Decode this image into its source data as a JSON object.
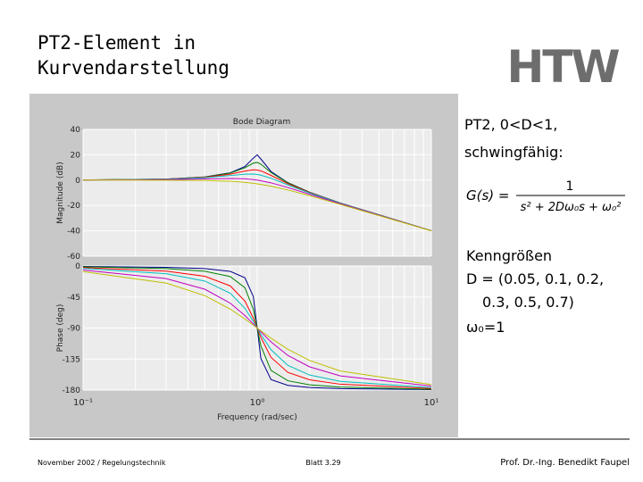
{
  "header": {
    "title_lines": [
      "PT2-Element in",
      "Kurvendarstellung"
    ],
    "logo": "HTW"
  },
  "side_text": {
    "heading_lines": [
      "PT2, 0<D<1,",
      "schwingfähig:"
    ],
    "formula": {
      "lhs": "G(s) =",
      "numerator": "1",
      "denominator": "s² + 2Dω₀s + ω₀²"
    },
    "params_lines": [
      "Kenngrößen",
      "D = (0.05, 0.1, 0.2,",
      "0.3, 0.5, 0.7)",
      "ω₀=1"
    ]
  },
  "footer": {
    "left": "November 2002 / Regelungstechnik",
    "center": "Blatt 3.29",
    "right": "Prof. Dr.-Ing. Benedikt Faupel"
  },
  "chart_data": [
    {
      "type": "line",
      "title": "Bode Diagram",
      "ylabel": "Magnitude (dB)",
      "xscale": "log",
      "grid": true,
      "x": [
        0.1,
        0.3,
        0.5,
        0.7,
        0.85,
        0.95,
        1,
        1.05,
        1.2,
        1.5,
        2,
        3,
        10
      ],
      "xlim": [
        0.1,
        10
      ],
      "ylim": [
        -60,
        40
      ],
      "yticks": [
        40,
        20,
        0,
        -20,
        -40,
        -60
      ],
      "series": [
        {
          "color": "#00008b",
          "values": [
            0.09,
            0.81,
            2.48,
            5.77,
            10.75,
            17.32,
            20,
            16.67,
            6.82,
            -2.0,
            -9.56,
            -18.07,
            -39.91
          ]
        },
        {
          "color": "#008000",
          "values": [
            0.09,
            0.8,
            2.42,
            5.53,
            9.75,
            13.41,
            13.98,
            12.63,
            6.0,
            -2.18,
            -9.62,
            -18.09,
            -39.91
          ]
        },
        {
          "color": "#ff0000",
          "values": [
            0.08,
            0.74,
            2.2,
            4.7,
            7.15,
            8.13,
            7.96,
            7.28,
            3.73,
            -2.84,
            -9.84,
            -18.16,
            -39.92
          ]
        },
        {
          "color": "#00bfbf",
          "values": [
            0.07,
            0.65,
            1.85,
            3.6,
            4.72,
            4.76,
            4.44,
            3.9,
            1.48,
            -3.75,
            -10.19,
            -18.28,
            -39.93
          ]
        },
        {
          "color": "#bf00bf",
          "values": [
            0.04,
            0.37,
            0.9,
            1.25,
            0.97,
            0.4,
            0,
            -0.47,
            -2.13,
            -5.81,
            -11.14,
            -18.63,
            -39.96
          ]
        },
        {
          "color": "#bfbf00",
          "values": [
            0.0,
            -0.02,
            -0.22,
            -0.87,
            -1.74,
            -2.5,
            -2.92,
            -3.37,
            -4.79,
            -7.76,
            -12.26,
            -19.12,
            -40.0
          ]
        }
      ]
    },
    {
      "type": "line",
      "ylabel": "Phase (deg)",
      "xlabel": "Frequency (rad/sec)",
      "xscale": "log",
      "grid": true,
      "x": [
        0.1,
        0.3,
        0.5,
        0.7,
        0.85,
        0.95,
        1,
        1.05,
        1.2,
        1.5,
        2,
        3,
        10
      ],
      "xlim": [
        0.1,
        10
      ],
      "xticks": [
        {
          "value": 0.1,
          "label": "10⁻¹"
        },
        {
          "value": 1,
          "label": "10⁰"
        },
        {
          "value": 10,
          "label": "10¹"
        }
      ],
      "ylim": [
        -180,
        0
      ],
      "yticks": [
        0,
        -45,
        -90,
        -135,
        -180
      ],
      "series": [
        {
          "color": "#00008b",
          "values": [
            -0.58,
            -1.9,
            -3.8,
            -7.8,
            -17.0,
            -44.3,
            -90,
            -134.3,
            -164.7,
            -173.2,
            -176.2,
            -177.9,
            -179.4
          ]
        },
        {
          "color": "#008000",
          "values": [
            -1.16,
            -3.77,
            -7.59,
            -15.35,
            -31.5,
            -62.8,
            -90,
            -116.0,
            -151.4,
            -166.5,
            -172.4,
            -175.7,
            -178.8
          ]
        },
        {
          "color": "#ff0000",
          "values": [
            -2.31,
            -7.51,
            -14.93,
            -28.8,
            -50.8,
            -75.6,
            -90,
            -103.7,
            -132.5,
            -154.4,
            -165.1,
            -171.5,
            -177.7
          ]
        },
        {
          "color": "#00bfbf",
          "values": [
            -3.47,
            -11.19,
            -21.8,
            -39.5,
            -61.4,
            -80.3,
            -90,
            -99.2,
            -121.4,
            -144.2,
            -158.2,
            -167.3,
            -176.5
          ]
        },
        {
          "color": "#bf00bf",
          "values": [
            -5.77,
            -18.25,
            -33.7,
            -53.9,
            -71.9,
            -84.1,
            -90,
            -95.6,
            -110.1,
            -129.8,
            -146.3,
            -159.4,
            -174.2
          ]
        },
        {
          "color": "#bfbf00",
          "values": [
            -8.05,
            -24.8,
            -43.0,
            -62.5,
            -76.9,
            -85.8,
            -90,
            -94.0,
            -104.7,
            -120.8,
            -137.0,
            -152.3,
            -172.0
          ]
        }
      ]
    }
  ]
}
